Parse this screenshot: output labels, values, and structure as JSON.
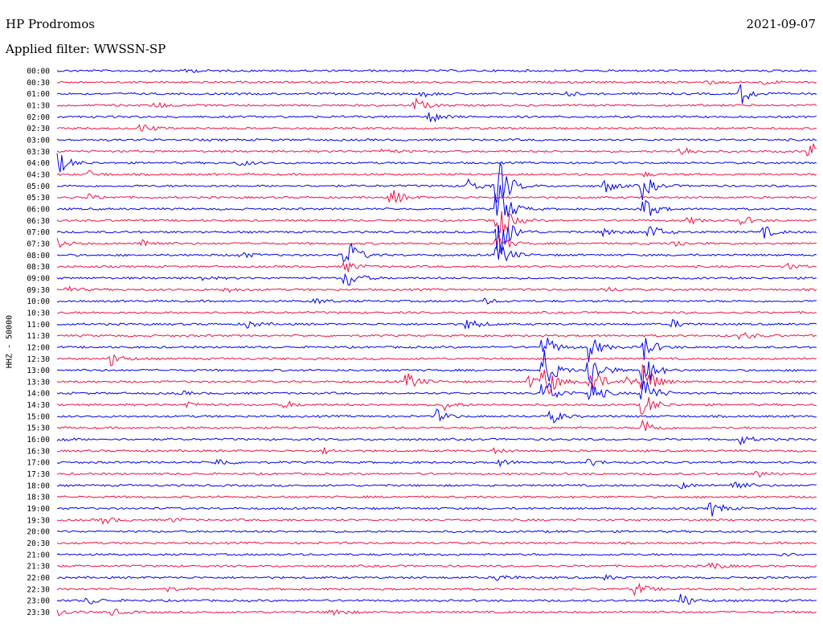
{
  "station": "HP Prodromos",
  "date": "2021-09-07",
  "filter_label": "Applied filter: WWSSN-SP",
  "chart_data": {
    "type": "line",
    "title": "HP Prodromos",
    "ylabel": "HHZ - 50000",
    "trace_colors": [
      "#0000ee",
      "#ee1144"
    ],
    "rows": [
      {
        "label": "00:00",
        "events": [
          [
            0.17,
            3
          ]
        ]
      },
      {
        "label": "00:30",
        "events": [
          [
            0.85,
            4
          ],
          [
            0.93,
            3
          ]
        ]
      },
      {
        "label": "01:00",
        "events": [
          [
            0.48,
            4
          ],
          [
            0.67,
            3
          ],
          [
            0.9,
            14
          ]
        ]
      },
      {
        "label": "01:30",
        "events": [
          [
            0.13,
            4
          ],
          [
            0.47,
            10
          ]
        ]
      },
      {
        "label": "02:00",
        "events": [
          [
            0.49,
            10
          ]
        ]
      },
      {
        "label": "02:30",
        "events": [
          [
            0.11,
            7
          ]
        ]
      },
      {
        "label": "03:00",
        "events": []
      },
      {
        "label": "03:30",
        "events": [
          [
            0.43,
            4
          ],
          [
            0.82,
            8
          ],
          [
            0.99,
            16
          ]
        ]
      },
      {
        "label": "04:00",
        "events": [
          [
            0.0,
            16
          ],
          [
            0.24,
            4
          ]
        ]
      },
      {
        "label": "04:30",
        "events": [
          [
            0.04,
            5
          ],
          [
            0.77,
            3
          ]
        ]
      },
      {
        "label": "05:00",
        "events": [
          [
            0.54,
            10
          ],
          [
            0.58,
            40
          ],
          [
            0.72,
            10
          ],
          [
            0.77,
            18
          ]
        ]
      },
      {
        "label": "05:30",
        "events": [
          [
            0.44,
            13
          ],
          [
            0.04,
            4
          ]
        ]
      },
      {
        "label": "06:00",
        "events": [
          [
            0.58,
            40
          ],
          [
            0.77,
            20
          ]
        ]
      },
      {
        "label": "06:30",
        "events": [
          [
            0.58,
            30
          ],
          [
            0.83,
            5
          ],
          [
            0.9,
            7
          ]
        ]
      },
      {
        "label": "07:00",
        "events": [
          [
            0.58,
            45
          ],
          [
            0.72,
            8
          ],
          [
            0.78,
            12
          ],
          [
            0.93,
            8
          ]
        ]
      },
      {
        "label": "07:30",
        "events": [
          [
            0.0,
            6
          ],
          [
            0.11,
            8
          ],
          [
            0.58,
            12
          ],
          [
            0.81,
            6
          ]
        ]
      },
      {
        "label": "08:00",
        "events": [
          [
            0.38,
            26
          ],
          [
            0.24,
            5
          ],
          [
            0.58,
            20
          ]
        ]
      },
      {
        "label": "08:30",
        "events": [
          [
            0.38,
            8
          ],
          [
            0.96,
            4
          ]
        ]
      },
      {
        "label": "09:00",
        "events": [
          [
            0.38,
            15
          ],
          [
            0.19,
            3
          ]
        ]
      },
      {
        "label": "09:30",
        "events": [
          [
            0.01,
            5
          ],
          [
            0.22,
            4
          ],
          [
            0.72,
            4
          ]
        ]
      },
      {
        "label": "10:00",
        "events": [
          [
            0.34,
            4
          ],
          [
            0.56,
            4
          ]
        ]
      },
      {
        "label": "10:30",
        "events": []
      },
      {
        "label": "11:00",
        "events": [
          [
            0.25,
            5
          ],
          [
            0.54,
            9
          ],
          [
            0.81,
            5
          ]
        ]
      },
      {
        "label": "11:30",
        "events": [
          [
            0.9,
            6
          ]
        ]
      },
      {
        "label": "12:00",
        "events": [
          [
            0.64,
            18
          ],
          [
            0.7,
            18
          ],
          [
            0.77,
            20
          ]
        ]
      },
      {
        "label": "12:30",
        "events": [
          [
            0.07,
            10
          ]
        ]
      },
      {
        "label": "13:00",
        "events": [
          [
            0.64,
            30
          ],
          [
            0.7,
            30
          ],
          [
            0.77,
            30
          ]
        ]
      },
      {
        "label": "13:30",
        "events": [
          [
            0.46,
            14
          ],
          [
            0.62,
            8
          ],
          [
            0.64,
            28
          ],
          [
            0.7,
            26
          ],
          [
            0.75,
            8
          ],
          [
            0.77,
            30
          ]
        ]
      },
      {
        "label": "14:00",
        "events": [
          [
            0.16,
            3
          ],
          [
            0.64,
            25
          ],
          [
            0.7,
            20
          ],
          [
            0.77,
            28
          ]
        ]
      },
      {
        "label": "14:30",
        "events": [
          [
            0.17,
            5
          ],
          [
            0.3,
            5
          ],
          [
            0.51,
            7
          ],
          [
            0.77,
            20
          ]
        ]
      },
      {
        "label": "15:00",
        "events": [
          [
            0.5,
            8
          ],
          [
            0.65,
            10
          ]
        ]
      },
      {
        "label": "15:30",
        "events": [
          [
            0.77,
            14
          ]
        ]
      },
      {
        "label": "16:00",
        "events": [
          [
            0.0,
            3
          ],
          [
            0.9,
            6
          ]
        ]
      },
      {
        "label": "16:30",
        "events": [
          [
            0.35,
            4
          ],
          [
            0.57,
            4
          ]
        ]
      },
      {
        "label": "17:00",
        "events": [
          [
            0.21,
            6
          ],
          [
            0.58,
            5
          ],
          [
            0.7,
            5
          ]
        ]
      },
      {
        "label": "17:30",
        "events": [
          [
            0.92,
            5
          ]
        ]
      },
      {
        "label": "18:00",
        "events": [
          [
            0.82,
            4
          ],
          [
            0.89,
            8
          ]
        ]
      },
      {
        "label": "18:30",
        "events": []
      },
      {
        "label": "19:00",
        "events": [
          [
            0.86,
            12
          ]
        ]
      },
      {
        "label": "19:30",
        "events": [
          [
            0.06,
            6
          ],
          [
            0.15,
            3
          ]
        ]
      },
      {
        "label": "20:00",
        "events": []
      },
      {
        "label": "20:30",
        "events": []
      },
      {
        "label": "21:00",
        "events": [
          [
            0.95,
            3
          ]
        ]
      },
      {
        "label": "21:30",
        "events": [
          [
            0.86,
            6
          ]
        ]
      },
      {
        "label": "22:00",
        "events": [
          [
            0.58,
            6
          ],
          [
            0.72,
            3
          ]
        ]
      },
      {
        "label": "22:30",
        "events": [
          [
            0.14,
            4
          ],
          [
            0.76,
            10
          ]
        ]
      },
      {
        "label": "23:00",
        "events": [
          [
            0.04,
            6
          ],
          [
            0.82,
            10
          ]
        ]
      },
      {
        "label": "23:30",
        "events": [
          [
            0.0,
            4
          ],
          [
            0.07,
            5
          ],
          [
            0.36,
            8
          ]
        ]
      }
    ]
  }
}
